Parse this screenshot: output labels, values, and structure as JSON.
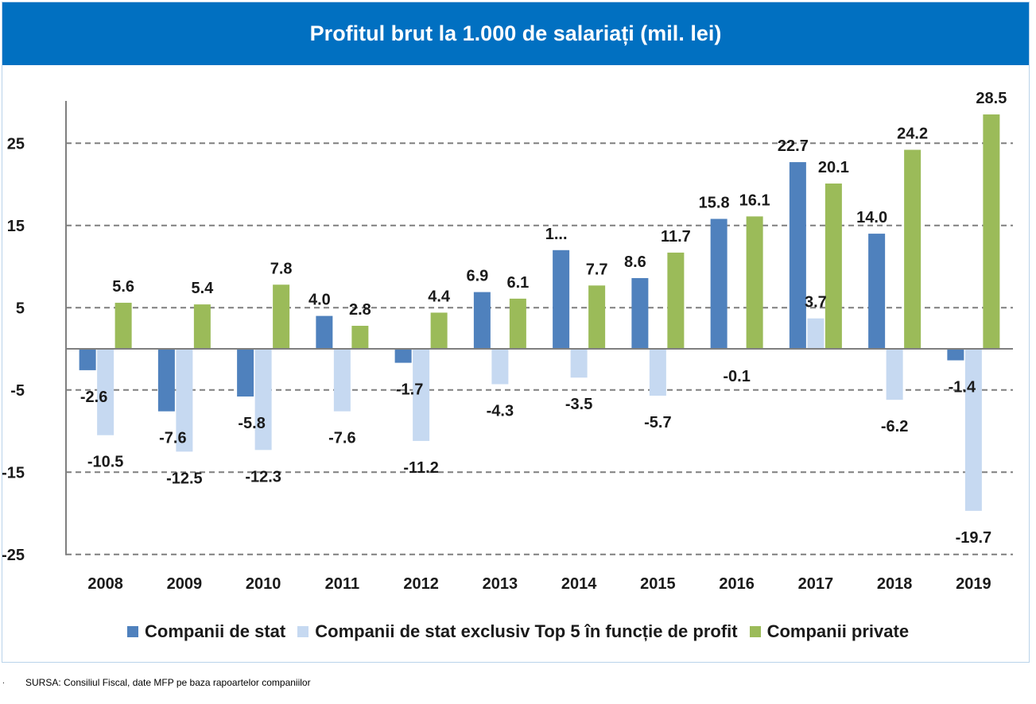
{
  "chart_data": {
    "type": "bar",
    "title": "Profitul brut la 1.000 de salariați (mil. lei)",
    "categories": [
      "2008",
      "2009",
      "2010",
      "2011",
      "2012",
      "2013",
      "2014",
      "2015",
      "2016",
      "2017",
      "2018",
      "2019"
    ],
    "series": [
      {
        "name": "Companii de stat",
        "color": "#4f81bd",
        "values": [
          -2.6,
          -7.6,
          -5.8,
          4.0,
          -1.7,
          6.9,
          12.0,
          8.6,
          15.8,
          22.7,
          14.0,
          -1.4
        ],
        "labels": [
          "-2.6",
          "-7.6",
          "-5.8",
          "4.0",
          "-1.7",
          "6.9",
          "1...",
          "8.6",
          "15.8",
          "22.7",
          "14.0",
          "-1.4"
        ]
      },
      {
        "name": "Companii de stat exclusiv Top 5 în funcție de profit",
        "color": "#c6d9f1",
        "values": [
          -10.5,
          -12.5,
          -12.3,
          -7.6,
          -11.2,
          -4.3,
          -3.5,
          -5.7,
          -0.1,
          3.7,
          -6.2,
          -19.7
        ],
        "labels": [
          "-10.5",
          "-12.5",
          "-12.3",
          "-7.6",
          "-11.2",
          "-4.3",
          "-3.5",
          "-5.7",
          "-0.1",
          "3.7",
          "-6.2",
          "-19.7"
        ]
      },
      {
        "name": "Companii private",
        "color": "#9bbb59",
        "values": [
          5.6,
          5.4,
          7.8,
          2.8,
          4.4,
          6.1,
          7.7,
          11.7,
          16.1,
          20.1,
          24.2,
          28.5
        ],
        "labels": [
          "5.6",
          "5.4",
          "7.8",
          "2.8",
          "4.4",
          "6.1",
          "7.7",
          "11.7",
          "16.1",
          "20.1",
          "24.2",
          "28.5"
        ]
      }
    ],
    "yticks": [
      "-25",
      "-15",
      "-5",
      "5",
      "15",
      "25"
    ],
    "ytick_values": [
      -25,
      -15,
      -5,
      5,
      15,
      25
    ],
    "ylim": [
      -25,
      31
    ],
    "grid": true,
    "legend_position": "bottom"
  },
  "title_color": "#0170c1",
  "source": "SURSA: Consiliul Fiscal, date MFP pe baza rapoartelor companiilor",
  "source_dot": "."
}
